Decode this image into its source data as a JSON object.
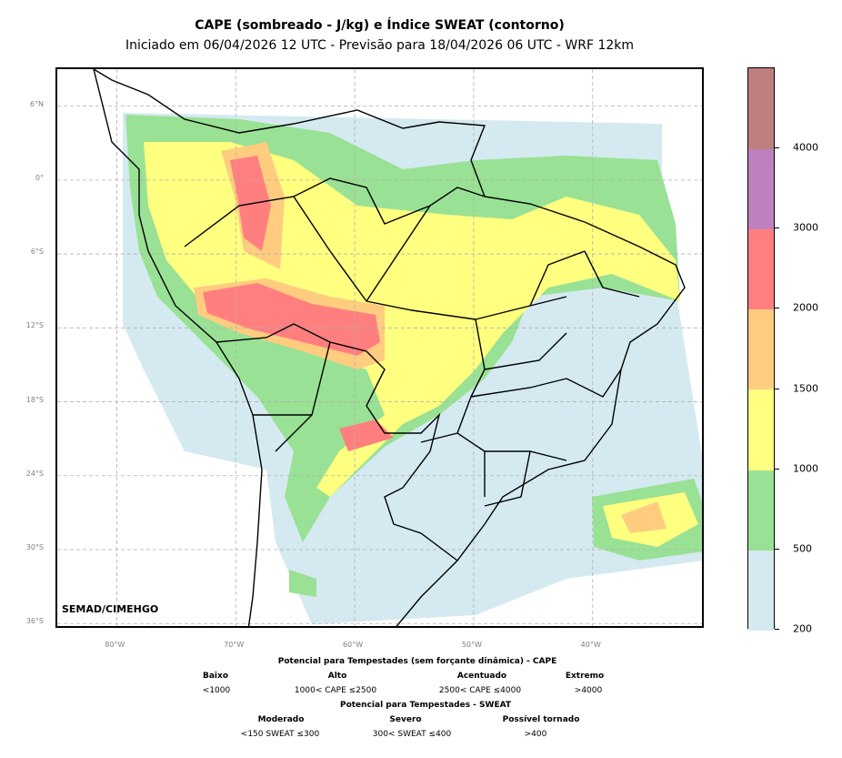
{
  "title": "CAPE (sombreado - J/kg) e Índice SWEAT (contorno)",
  "subtitle": "Iniciado em 06/04/2026 12 UTC - Previsão para 18/04/2026 06 UTC - WRF 12km",
  "credit": "SEMAD/CIMEHGO",
  "map": {
    "lon_range": [
      -85,
      -30.5
    ],
    "lat_range": [
      -36.5,
      9
    ],
    "lat_ticks": [
      "6°N",
      "0°",
      "6°S",
      "12°S",
      "18°S",
      "24°S",
      "30°S",
      "36°S"
    ],
    "lon_ticks": [
      "80°W",
      "70°W",
      "60°W",
      "50°W",
      "40°W"
    ],
    "grid": true
  },
  "colorbar": {
    "levels": [
      "200",
      "500",
      "1000",
      "1500",
      "2000",
      "3000",
      "4000"
    ],
    "colors": [
      "#d4eaf0",
      "#99e194",
      "#ffff80",
      "#ffcc80",
      "#ff7f7f",
      "#bf80bf",
      "#bf7f7f"
    ]
  },
  "legend": {
    "cape_title": "Potencial para Tempestades (sem forçante dinâmica) - CAPE",
    "cape_categories": [
      {
        "name": "Baixo",
        "range": "<1000"
      },
      {
        "name": "Alto",
        "range": "1000< CAPE ≤2500"
      },
      {
        "name": "Acentuado",
        "range": "2500< CAPE ≤4000"
      },
      {
        "name": "Extremo",
        "range": ">4000"
      }
    ],
    "sweat_title": "Potencial para Tempestades - SWEAT",
    "sweat_categories": [
      {
        "name": "Moderado",
        "range": "<150 SWEAT ≤300"
      },
      {
        "name": "Severo",
        "range": "300< SWEAT ≤400"
      },
      {
        "name": "Possível tornado",
        "range": ">400"
      }
    ]
  }
}
